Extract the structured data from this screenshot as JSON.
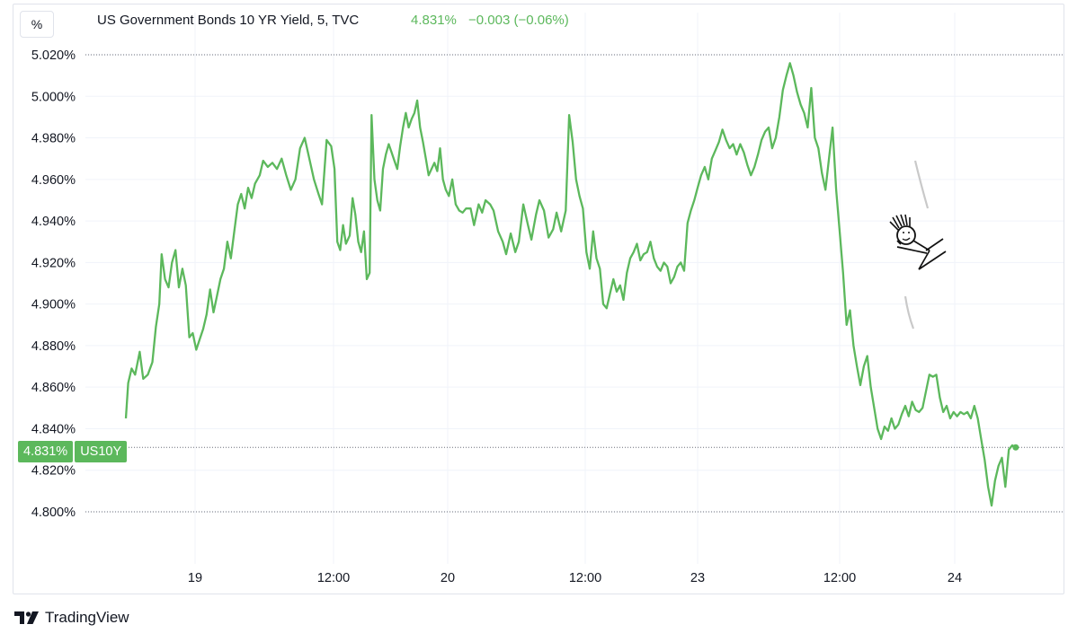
{
  "header": {
    "unit_button": "%",
    "title": "US Government Bonds 10 YR Yield, 5, TVC",
    "last_value": "4.831%",
    "change": "−0.003 (−0.06%)"
  },
  "price_label": {
    "value": "4.831%",
    "symbol": "US10Y"
  },
  "branding": {
    "text": "TradingView"
  },
  "colors": {
    "line": "#5cb85c",
    "grid": "#f0f3fa",
    "frame": "#e0e3eb",
    "text": "#131722",
    "price_label_bg": "#5cb85c"
  },
  "chart_data": {
    "type": "line",
    "title": "US Government Bonds 10 YR Yield, 5, TVC",
    "xlabel": "",
    "ylabel": "",
    "ylim": [
      4.795,
      5.025
    ],
    "grid": true,
    "y_ticks": [
      "5.020%",
      "5.000%",
      "4.980%",
      "4.960%",
      "4.940%",
      "4.920%",
      "4.900%",
      "4.880%",
      "4.860%",
      "4.840%",
      "4.820%",
      "4.800%"
    ],
    "x_ticks": [
      {
        "label": "19",
        "t": 6
      },
      {
        "label": "12:00",
        "t": 18
      },
      {
        "label": "20",
        "t": 30
      },
      {
        "label": "12:00",
        "t": 42
      },
      {
        "label": "23",
        "t": 52
      },
      {
        "label": "12:00",
        "t": 64
      },
      {
        "label": "24",
        "t": 74
      }
    ],
    "t_range": [
      0,
      86
    ],
    "last_value": 4.831,
    "dotted_lines": [
      5.02,
      4.831,
      4.8
    ],
    "series": [
      {
        "values": [
          [
            0,
            4.845
          ],
          [
            0.2,
            4.862
          ],
          [
            0.5,
            4.869
          ],
          [
            0.8,
            4.866
          ],
          [
            1.2,
            4.877
          ],
          [
            1.5,
            4.864
          ],
          [
            1.9,
            4.866
          ],
          [
            2.3,
            4.872
          ],
          [
            2.6,
            4.889
          ],
          [
            2.9,
            4.9
          ],
          [
            3.1,
            4.924
          ],
          [
            3.4,
            4.912
          ],
          [
            3.7,
            4.908
          ],
          [
            4.0,
            4.92
          ],
          [
            4.3,
            4.926
          ],
          [
            4.6,
            4.908
          ],
          [
            4.9,
            4.917
          ],
          [
            5.2,
            4.909
          ],
          [
            5.5,
            4.884
          ],
          [
            5.8,
            4.886
          ],
          [
            6.1,
            4.878
          ],
          [
            6.4,
            4.883
          ],
          [
            6.7,
            4.888
          ],
          [
            7.0,
            4.895
          ],
          [
            7.3,
            4.907
          ],
          [
            7.6,
            4.896
          ],
          [
            7.9,
            4.904
          ],
          [
            8.2,
            4.912
          ],
          [
            8.5,
            4.917
          ],
          [
            8.8,
            4.93
          ],
          [
            9.1,
            4.922
          ],
          [
            9.4,
            4.935
          ],
          [
            9.7,
            4.948
          ],
          [
            10.0,
            4.953
          ],
          [
            10.3,
            4.946
          ],
          [
            10.6,
            4.956
          ],
          [
            10.9,
            4.951
          ],
          [
            11.2,
            4.958
          ],
          [
            11.6,
            4.962
          ],
          [
            11.9,
            4.969
          ],
          [
            12.3,
            4.966
          ],
          [
            12.7,
            4.968
          ],
          [
            13.1,
            4.965
          ],
          [
            13.5,
            4.97
          ],
          [
            13.9,
            4.962
          ],
          [
            14.3,
            4.955
          ],
          [
            14.7,
            4.96
          ],
          [
            15.1,
            4.975
          ],
          [
            15.5,
            4.98
          ],
          [
            15.9,
            4.97
          ],
          [
            16.3,
            4.96
          ],
          [
            16.7,
            4.953
          ],
          [
            17.0,
            4.948
          ],
          [
            17.4,
            4.979
          ],
          [
            17.8,
            4.976
          ],
          [
            18.1,
            4.965
          ],
          [
            18.4,
            4.93
          ],
          [
            18.7,
            4.926
          ],
          [
            19.0,
            4.938
          ],
          [
            19.3,
            4.929
          ],
          [
            19.7,
            4.933
          ],
          [
            20.0,
            4.951
          ],
          [
            20.3,
            4.943
          ],
          [
            20.6,
            4.93
          ],
          [
            20.9,
            4.925
          ],
          [
            21.2,
            4.935
          ],
          [
            21.5,
            4.912
          ],
          [
            21.8,
            4.915
          ],
          [
            22.0,
            4.991
          ],
          [
            22.3,
            4.96
          ],
          [
            22.6,
            4.95
          ],
          [
            22.9,
            4.945
          ],
          [
            23.2,
            4.965
          ],
          [
            23.5,
            4.972
          ],
          [
            23.8,
            4.977
          ],
          [
            24.1,
            4.973
          ],
          [
            24.4,
            4.969
          ],
          [
            24.7,
            4.965
          ],
          [
            25.0,
            4.976
          ],
          [
            25.3,
            4.985
          ],
          [
            25.6,
            4.992
          ],
          [
            25.9,
            4.985
          ],
          [
            26.2,
            4.989
          ],
          [
            26.5,
            4.992
          ],
          [
            26.8,
            4.998
          ],
          [
            27.1,
            4.985
          ],
          [
            27.4,
            4.978
          ],
          [
            27.7,
            4.97
          ],
          [
            28.0,
            4.962
          ],
          [
            28.3,
            4.965
          ],
          [
            28.6,
            4.968
          ],
          [
            28.9,
            4.964
          ],
          [
            29.2,
            4.975
          ],
          [
            29.5,
            4.96
          ],
          [
            29.8,
            4.955
          ],
          [
            30.1,
            4.952
          ],
          [
            30.4,
            4.96
          ],
          [
            30.7,
            4.948
          ],
          [
            31.0,
            4.945
          ],
          [
            31.3,
            4.944
          ],
          [
            31.6,
            4.946
          ],
          [
            32.0,
            4.946
          ],
          [
            32.3,
            4.938
          ],
          [
            32.7,
            4.948
          ],
          [
            33.0,
            4.944
          ],
          [
            33.3,
            4.95
          ],
          [
            33.7,
            4.948
          ],
          [
            34.0,
            4.945
          ],
          [
            34.4,
            4.935
          ],
          [
            34.8,
            4.93
          ],
          [
            35.1,
            4.924
          ],
          [
            35.5,
            4.934
          ],
          [
            35.9,
            4.925
          ],
          [
            36.2,
            4.93
          ],
          [
            36.6,
            4.948
          ],
          [
            37.0,
            4.938
          ],
          [
            37.3,
            4.931
          ],
          [
            37.7,
            4.943
          ],
          [
            38.0,
            4.95
          ],
          [
            38.4,
            4.945
          ],
          [
            38.8,
            4.932
          ],
          [
            39.2,
            4.936
          ],
          [
            39.5,
            4.944
          ],
          [
            39.9,
            4.935
          ],
          [
            40.3,
            4.945
          ],
          [
            40.6,
            4.991
          ],
          [
            40.9,
            4.978
          ],
          [
            41.2,
            4.96
          ],
          [
            41.5,
            4.952
          ],
          [
            41.8,
            4.946
          ],
          [
            42.1,
            4.925
          ],
          [
            42.4,
            4.917
          ],
          [
            42.7,
            4.935
          ],
          [
            43.0,
            4.922
          ],
          [
            43.3,
            4.917
          ],
          [
            43.6,
            4.9
          ],
          [
            43.9,
            4.898
          ],
          [
            44.2,
            4.905
          ],
          [
            44.5,
            4.912
          ],
          [
            44.8,
            4.906
          ],
          [
            45.1,
            4.909
          ],
          [
            45.4,
            4.902
          ],
          [
            45.7,
            4.915
          ],
          [
            46.0,
            4.922
          ],
          [
            46.3,
            4.925
          ],
          [
            46.6,
            4.929
          ],
          [
            46.9,
            4.921
          ],
          [
            47.2,
            4.924
          ],
          [
            47.5,
            4.925
          ],
          [
            47.8,
            4.93
          ],
          [
            48.1,
            4.922
          ],
          [
            48.4,
            4.918
          ],
          [
            48.7,
            4.916
          ],
          [
            49.0,
            4.92
          ],
          [
            49.3,
            4.918
          ],
          [
            49.6,
            4.91
          ],
          [
            49.9,
            4.913
          ],
          [
            50.2,
            4.918
          ],
          [
            50.5,
            4.92
          ],
          [
            50.8,
            4.916
          ],
          [
            51.1,
            4.939
          ],
          [
            51.4,
            4.945
          ],
          [
            51.7,
            4.95
          ],
          [
            52.0,
            4.956
          ],
          [
            52.3,
            4.962
          ],
          [
            52.6,
            4.966
          ],
          [
            52.9,
            4.96
          ],
          [
            53.2,
            4.97
          ],
          [
            53.5,
            4.974
          ],
          [
            53.8,
            4.978
          ],
          [
            54.1,
            4.984
          ],
          [
            54.4,
            4.979
          ],
          [
            54.7,
            4.975
          ],
          [
            55.0,
            4.977
          ],
          [
            55.3,
            4.972
          ],
          [
            55.6,
            4.977
          ],
          [
            55.9,
            4.973
          ],
          [
            56.2,
            4.967
          ],
          [
            56.5,
            4.962
          ],
          [
            56.8,
            4.966
          ],
          [
            57.1,
            4.972
          ],
          [
            57.4,
            4.979
          ],
          [
            57.7,
            4.983
          ],
          [
            58.0,
            4.985
          ],
          [
            58.3,
            4.975
          ],
          [
            58.6,
            4.98
          ],
          [
            58.9,
            4.99
          ],
          [
            59.2,
            5.003
          ],
          [
            59.5,
            5.01
          ],
          [
            59.8,
            5.016
          ],
          [
            60.1,
            5.01
          ],
          [
            60.4,
            5.002
          ],
          [
            60.7,
            4.996
          ],
          [
            61.0,
            4.992
          ],
          [
            61.3,
            4.985
          ],
          [
            61.6,
            5.004
          ],
          [
            61.9,
            4.98
          ],
          [
            62.2,
            4.975
          ],
          [
            62.5,
            4.963
          ],
          [
            62.8,
            4.955
          ],
          [
            63.1,
            4.97
          ],
          [
            63.4,
            4.985
          ],
          [
            63.7,
            4.955
          ],
          [
            64.0,
            4.935
          ],
          [
            64.3,
            4.915
          ],
          [
            64.6,
            4.89
          ],
          [
            64.9,
            4.897
          ],
          [
            65.2,
            4.88
          ],
          [
            65.5,
            4.87
          ],
          [
            65.8,
            4.861
          ],
          [
            66.1,
            4.87
          ],
          [
            66.4,
            4.875
          ],
          [
            66.7,
            4.86
          ],
          [
            67.0,
            4.85
          ],
          [
            67.3,
            4.84
          ],
          [
            67.6,
            4.835
          ],
          [
            67.9,
            4.841
          ],
          [
            68.2,
            4.839
          ],
          [
            68.5,
            4.845
          ],
          [
            68.8,
            4.84
          ],
          [
            69.1,
            4.842
          ],
          [
            69.4,
            4.847
          ],
          [
            69.7,
            4.851
          ],
          [
            70.0,
            4.846
          ],
          [
            70.3,
            4.853
          ],
          [
            70.6,
            4.849
          ],
          [
            70.9,
            4.848
          ],
          [
            71.2,
            4.85
          ],
          [
            71.5,
            4.858
          ],
          [
            71.8,
            4.866
          ],
          [
            72.1,
            4.865
          ],
          [
            72.4,
            4.866
          ],
          [
            72.7,
            4.855
          ],
          [
            73.0,
            4.848
          ],
          [
            73.3,
            4.851
          ],
          [
            73.6,
            4.845
          ],
          [
            73.9,
            4.848
          ],
          [
            74.2,
            4.846
          ],
          [
            74.5,
            4.848
          ],
          [
            74.8,
            4.847
          ],
          [
            75.1,
            4.848
          ],
          [
            75.4,
            4.845
          ],
          [
            75.7,
            4.851
          ],
          [
            76.0,
            4.845
          ],
          [
            76.3,
            4.835
          ],
          [
            76.6,
            4.825
          ],
          [
            76.9,
            4.812
          ],
          [
            77.2,
            4.803
          ],
          [
            77.5,
            4.815
          ],
          [
            77.8,
            4.822
          ],
          [
            78.1,
            4.826
          ],
          [
            78.4,
            4.812
          ],
          [
            78.7,
            4.83
          ],
          [
            79.0,
            4.832
          ],
          [
            79.3,
            4.831
          ]
        ]
      }
    ]
  }
}
